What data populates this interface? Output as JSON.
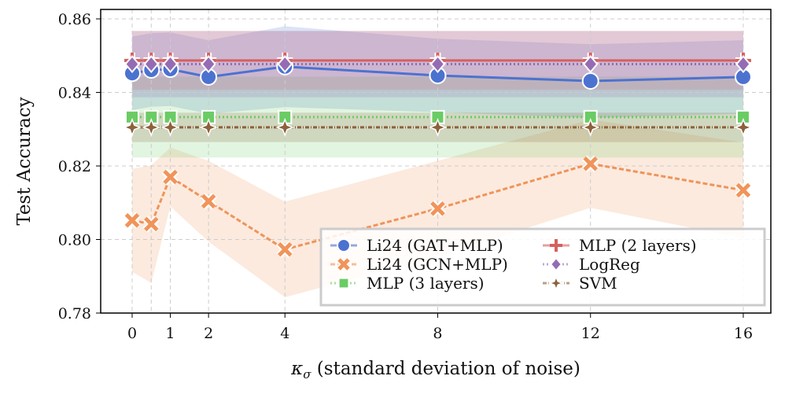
{
  "chart_data": {
    "type": "line",
    "xlabel": "κσ (standard deviation of noise)",
    "ylabel": "Test Accuracy",
    "x": [
      0,
      0.5,
      1,
      2,
      4,
      8,
      12,
      16
    ],
    "xticks": [
      0,
      1,
      2,
      4,
      8,
      12,
      16
    ],
    "xlim": [
      -1,
      17.5
    ],
    "ylim": [
      0.78,
      0.862
    ],
    "yticks": [
      "0.78",
      "0.80",
      "0.82",
      "0.84",
      "0.86"
    ],
    "grid": true,
    "legend_position": "lower-right",
    "series": [
      {
        "name": "Li24 (GAT+MLP)",
        "color": "#4c72d0",
        "marker": "circle",
        "dash": "",
        "values": [
          0.8452,
          0.8461,
          0.8463,
          0.8442,
          0.847,
          0.8446,
          0.8431,
          0.8442
        ],
        "std": [
          0.01,
          0.01,
          0.01,
          0.01,
          0.011,
          0.01,
          0.01,
          0.01
        ]
      },
      {
        "name": "Li24 (GCN+MLP)",
        "color": "#f0945a",
        "marker": "x",
        "dash": "6,3",
        "values": [
          0.8052,
          0.8042,
          0.817,
          0.8104,
          0.7973,
          0.8084,
          0.8206,
          0.8134
        ],
        "std": [
          0.014,
          0.016,
          0.008,
          0.011,
          0.013,
          0.013,
          0.012,
          0.013
        ]
      },
      {
        "name": "MLP (3 layers)",
        "color": "#6acc64",
        "marker": "square",
        "dash": "2,3",
        "values": [
          0.8333,
          0.8333,
          0.8333,
          0.8333,
          0.8333,
          0.8333,
          0.8333,
          0.8333
        ],
        "std": [
          0.011,
          0.011,
          0.011,
          0.011,
          0.011,
          0.011,
          0.011,
          0.011
        ]
      },
      {
        "name": "MLP (2 layers)",
        "color": "#d65f5f",
        "marker": "plus",
        "dash": "",
        "values": [
          0.8487,
          0.8487,
          0.8487,
          0.8487,
          0.8487,
          0.8487,
          0.8487,
          0.8487
        ],
        "std": [
          0.008,
          0.008,
          0.008,
          0.008,
          0.008,
          0.008,
          0.008,
          0.008
        ]
      },
      {
        "name": "LogReg",
        "color": "#956cb4",
        "marker": "diamond",
        "dash": "2,3",
        "values": [
          0.8477,
          0.8477,
          0.8477,
          0.8477,
          0.8477,
          0.8477,
          0.8477,
          0.8477
        ],
        "std": [
          0.009,
          0.009,
          0.009,
          0.009,
          0.009,
          0.009,
          0.009,
          0.009
        ]
      },
      {
        "name": "SVM",
        "color": "#8c613c",
        "marker": "star",
        "dash": "5,2,1,2",
        "values": [
          0.8305,
          0.8305,
          0.8305,
          0.8305,
          0.8305,
          0.8305,
          0.8305,
          0.8305
        ],
        "std": [
          0.004,
          0.004,
          0.004,
          0.004,
          0.004,
          0.004,
          0.004,
          0.004
        ]
      }
    ]
  }
}
